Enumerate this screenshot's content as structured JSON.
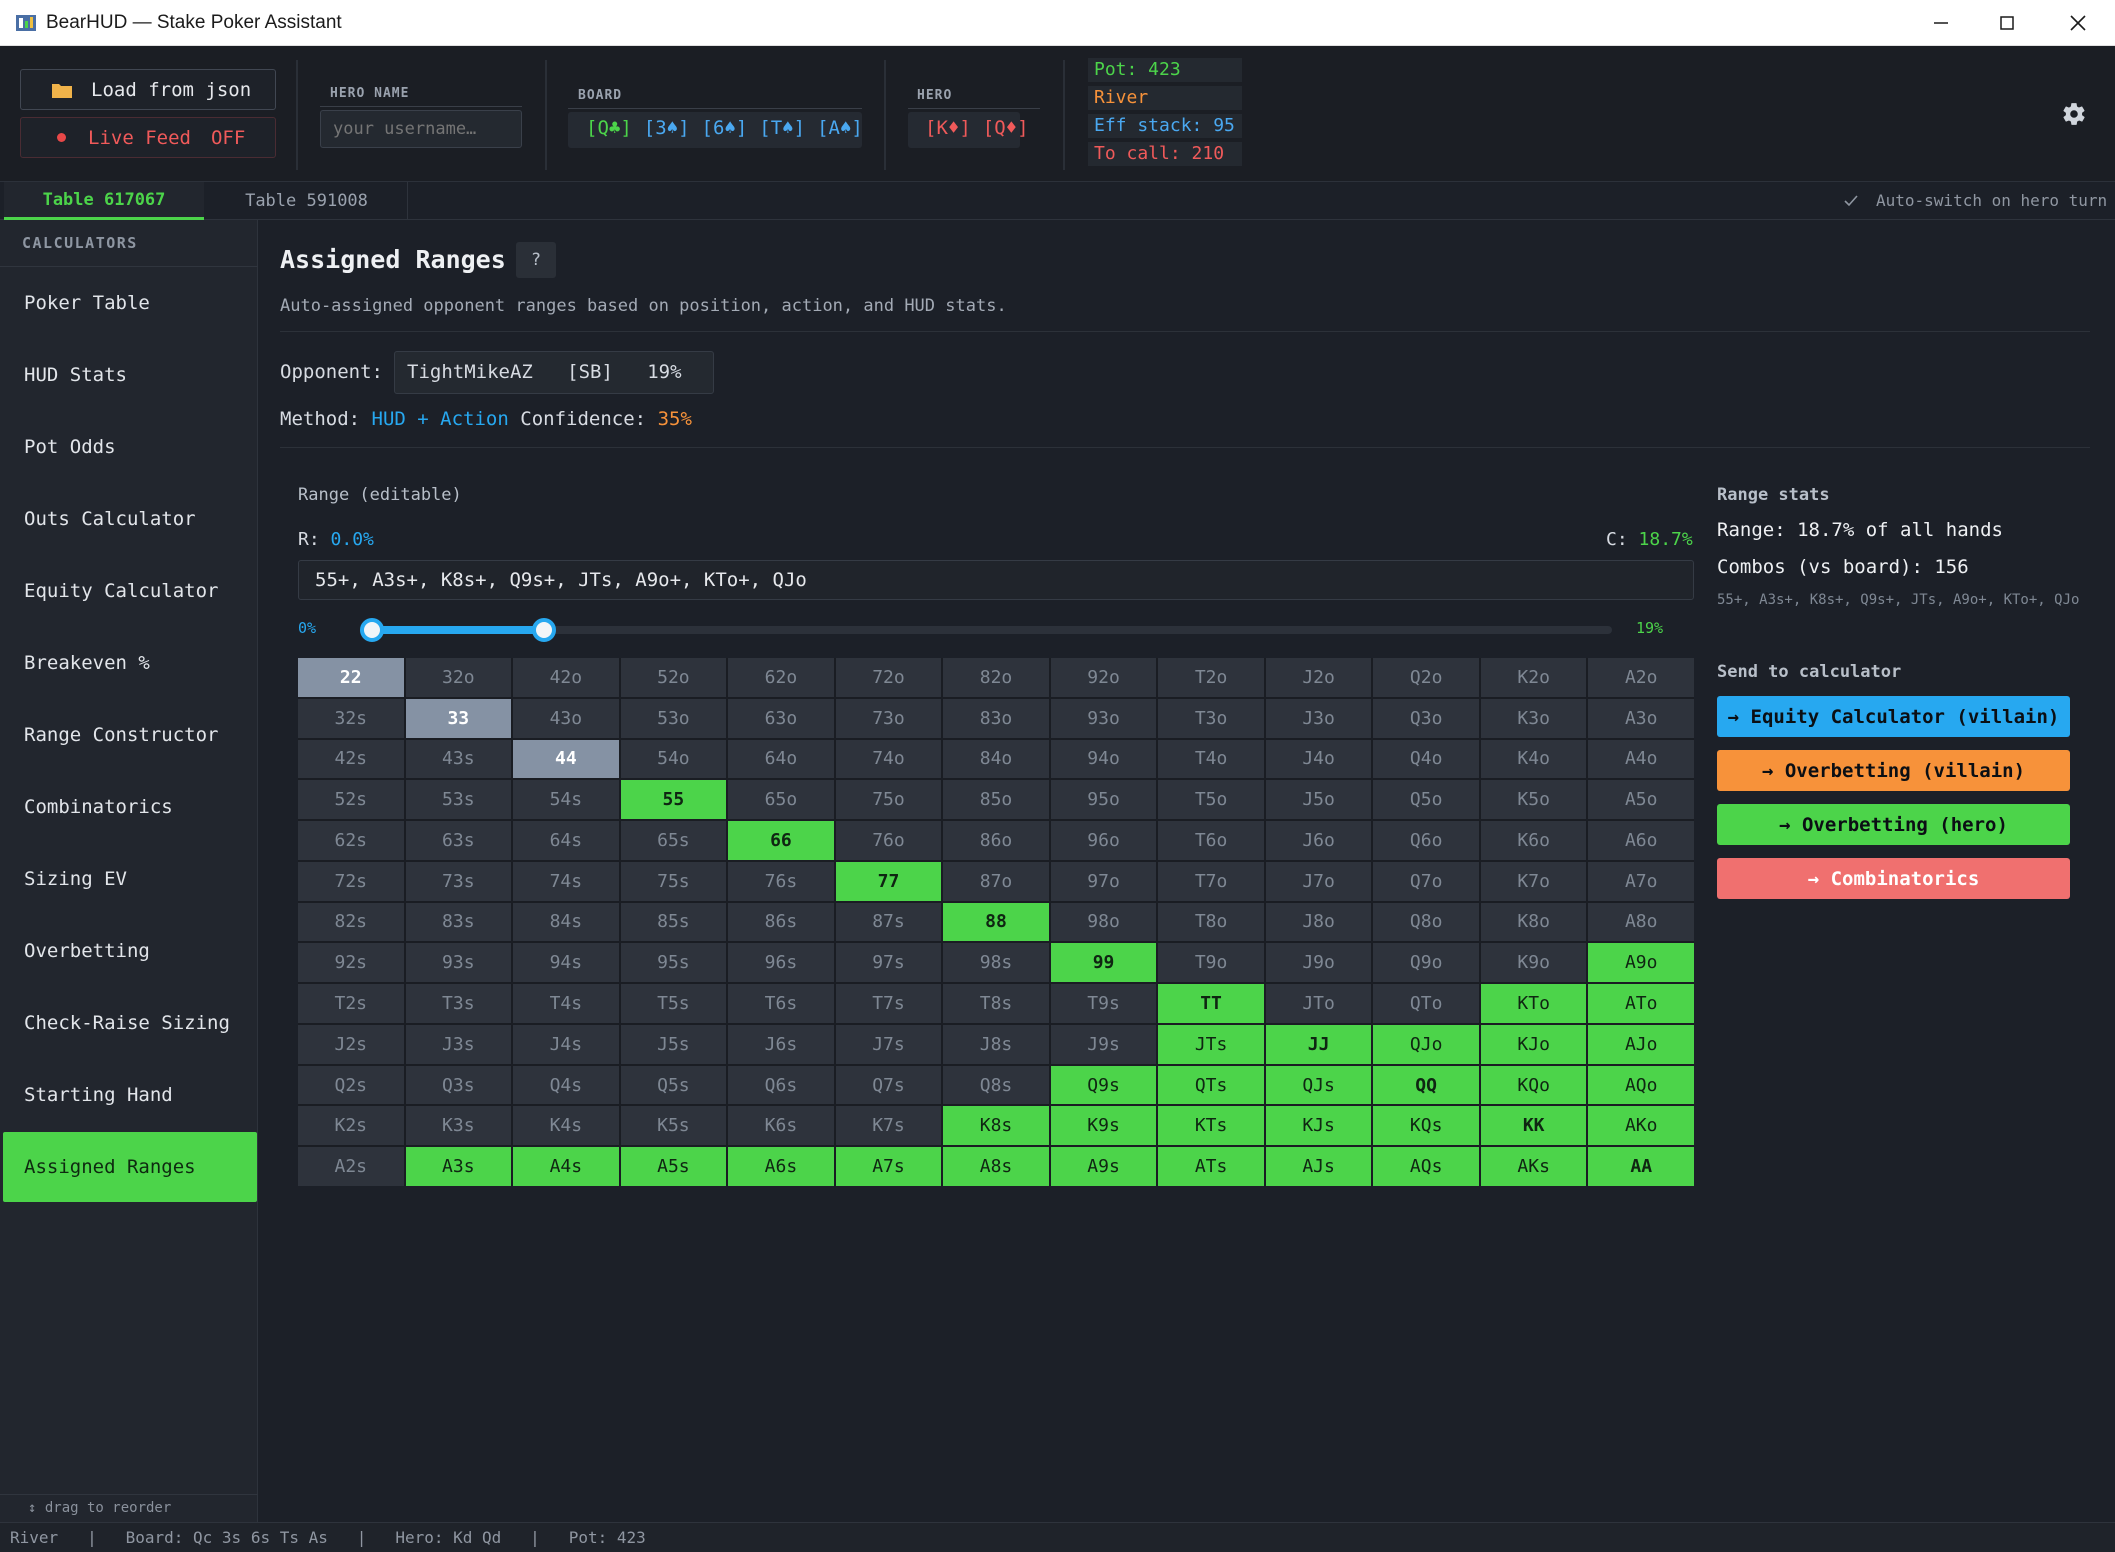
{
  "window": {
    "title": "BearHUD — Stake Poker Assistant"
  },
  "header": {
    "load_button": "Load from json",
    "live_feed_label": "Live Feed",
    "live_feed_state": "OFF",
    "hero_name_label": "HERO NAME",
    "hero_name_placeholder": "your username…",
    "board_label": "BOARD",
    "board_cards": [
      "[Q♣]",
      "[3♠]",
      "[6♠]",
      "[T♠]",
      "[A♠]"
    ],
    "hero_label": "HERO",
    "hero_cards": [
      "[K♦]",
      "[Q♦]"
    ],
    "pot": "Pot: 423",
    "street": "River",
    "eff_stack": "Eff stack: 95",
    "to_call": "To call: 210"
  },
  "tabs": {
    "items": [
      "Table 617067",
      "Table 591008"
    ],
    "active": "Table 617067",
    "auto_switch": "Auto-switch on hero turn"
  },
  "sidebar": {
    "heading": "CALCULATORS",
    "items": [
      "Poker Table",
      "HUD Stats",
      "Pot Odds",
      "Outs Calculator",
      "Equity Calculator",
      "Breakeven %",
      "Range Constructor",
      "Combinatorics",
      "Sizing EV",
      "Overbetting",
      "Check-Raise Sizing",
      "Starting Hand",
      "Assigned Ranges"
    ],
    "active": "Assigned Ranges",
    "footer": "↕ drag to reorder"
  },
  "main": {
    "title": "Assigned Ranges",
    "help": "?",
    "subtitle": "Auto-assigned opponent ranges based on position, action, and HUD stats.",
    "opponent_label": "Opponent:",
    "opponent_value": "TightMikeAZ   [SB]   19%",
    "method_label": "Method:",
    "method_value": "HUD + Action",
    "confidence_label": "Confidence:",
    "confidence_value": "35%",
    "range_editable_label": "Range (editable)",
    "r_label": "R:",
    "r_value": "0.0%",
    "c_label": "C:",
    "c_value": "18.7%",
    "range_text": "55+, A3s+, K8s+, Q9s+, JTs, A9o+, KTo+, QJo",
    "slider_min_label": "0%",
    "slider_max_label": "19%",
    "slider_low": 0,
    "slider_high": 0.19
  },
  "grid": {
    "rows": [
      [
        "22",
        "32o",
        "42o",
        "52o",
        "62o",
        "72o",
        "82o",
        "92o",
        "T2o",
        "J2o",
        "Q2o",
        "K2o",
        "A2o"
      ],
      [
        "32s",
        "33",
        "43o",
        "53o",
        "63o",
        "73o",
        "83o",
        "93o",
        "T3o",
        "J3o",
        "Q3o",
        "K3o",
        "A3o"
      ],
      [
        "42s",
        "43s",
        "44",
        "54o",
        "64o",
        "74o",
        "84o",
        "94o",
        "T4o",
        "J4o",
        "Q4o",
        "K4o",
        "A4o"
      ],
      [
        "52s",
        "53s",
        "54s",
        "55",
        "65o",
        "75o",
        "85o",
        "95o",
        "T5o",
        "J5o",
        "Q5o",
        "K5o",
        "A5o"
      ],
      [
        "62s",
        "63s",
        "64s",
        "65s",
        "66",
        "76o",
        "86o",
        "96o",
        "T6o",
        "J6o",
        "Q6o",
        "K6o",
        "A6o"
      ],
      [
        "72s",
        "73s",
        "74s",
        "75s",
        "76s",
        "77",
        "87o",
        "97o",
        "T7o",
        "J7o",
        "Q7o",
        "K7o",
        "A7o"
      ],
      [
        "82s",
        "83s",
        "84s",
        "85s",
        "86s",
        "87s",
        "88",
        "98o",
        "T8o",
        "J8o",
        "Q8o",
        "K8o",
        "A8o"
      ],
      [
        "92s",
        "93s",
        "94s",
        "95s",
        "96s",
        "97s",
        "98s",
        "99",
        "T9o",
        "J9o",
        "Q9o",
        "K9o",
        "A9o"
      ],
      [
        "T2s",
        "T3s",
        "T4s",
        "T5s",
        "T6s",
        "T7s",
        "T8s",
        "T9s",
        "TT",
        "JTo",
        "QTo",
        "KTo",
        "ATo"
      ],
      [
        "J2s",
        "J3s",
        "J4s",
        "J5s",
        "J6s",
        "J7s",
        "J8s",
        "J9s",
        "JTs",
        "JJ",
        "QJo",
        "KJo",
        "AJo"
      ],
      [
        "Q2s",
        "Q3s",
        "Q4s",
        "Q5s",
        "Q6s",
        "Q7s",
        "Q8s",
        "Q9s",
        "QTs",
        "QJs",
        "QQ",
        "KQo",
        "AQo"
      ],
      [
        "K2s",
        "K3s",
        "K4s",
        "K5s",
        "K6s",
        "K7s",
        "K8s",
        "K9s",
        "KTs",
        "KJs",
        "KQs",
        "KK",
        "AKo"
      ],
      [
        "A2s",
        "A3s",
        "A4s",
        "A5s",
        "A6s",
        "A7s",
        "A8s",
        "A9s",
        "ATs",
        "AJs",
        "AQs",
        "AKs",
        "AA"
      ]
    ],
    "selected": [
      "55",
      "66",
      "77",
      "88",
      "99",
      "TT",
      "JJ",
      "QQ",
      "KK",
      "AA",
      "A3s",
      "A4s",
      "A5s",
      "A6s",
      "A7s",
      "A8s",
      "A9s",
      "ATs",
      "AJs",
      "AQs",
      "AKs",
      "K8s",
      "K9s",
      "KTs",
      "KJs",
      "KQs",
      "Q9s",
      "QTs",
      "QJs",
      "JTs",
      "A9o",
      "ATo",
      "AJo",
      "AQo",
      "AKo",
      "KTo",
      "KJo",
      "KQo",
      "QJo"
    ],
    "highlighted": [
      "22",
      "33",
      "44"
    ]
  },
  "stats": {
    "heading": "Range stats",
    "range_line": "Range: 18.7% of all hands",
    "combos_line": "Combos (vs board): 156",
    "range_small": "55+, A3s+, K8s+, Q9s+, JTs, A9o+, KTo+, QJo",
    "send_heading": "Send to calculator",
    "buttons": [
      {
        "label": "→ Equity Calculator (villain)",
        "color": "#27a8f0"
      },
      {
        "label": "→ Overbetting (villain)",
        "color": "#f7923a"
      },
      {
        "label": "→ Overbetting (hero)",
        "color": "#4cd44a"
      },
      {
        "label": "→ Combinatorics",
        "color": "#f0706f"
      }
    ]
  },
  "statusbar": {
    "text": "River   |   Board: Qc 3s 6s Ts As   |   Hero: Kd Qd   |   Pot: 423"
  },
  "colors": {
    "accent_green": "#4cd44a",
    "accent_blue": "#27a8f0",
    "accent_orange": "#f7923a",
    "accent_red": "#f0706f"
  }
}
